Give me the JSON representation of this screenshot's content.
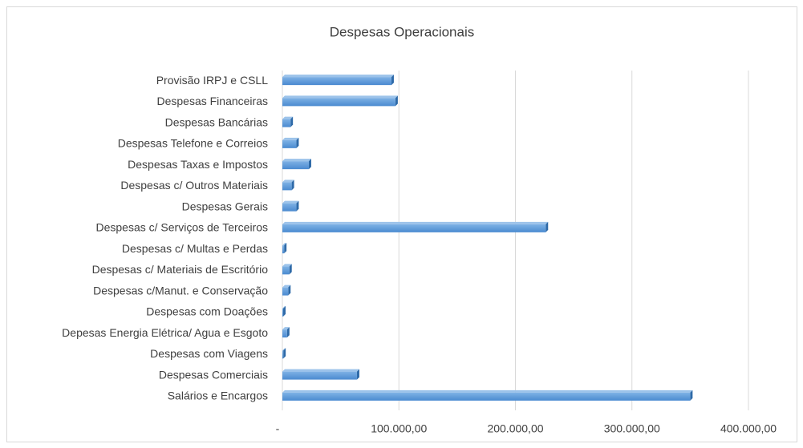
{
  "chart_data": {
    "type": "bar",
    "orientation": "horizontal",
    "title": "Despesas Operacionais",
    "categories": [
      "Provisão IRPJ e CSLL",
      "Despesas Financeiras",
      "Despesas Bancárias",
      "Despesas Telefone e Correios",
      "Despesas Taxas e Impostos",
      "Despesas c/ Outros Materiais",
      "Despesas Gerais",
      "Despesas c/ Serviços de Terceiros",
      "Despesas c/ Multas e Perdas",
      "Despesas c/ Materiais de Escritório",
      "Despesas c/Manut. e Conservação",
      "Despesas com Doações",
      "Depesas Energia Elétrica/ Agua e Esgoto",
      "Despesas com Viagens",
      "Despesas Comerciais",
      "Salários e Encargos"
    ],
    "values": [
      93600,
      97000,
      7000,
      12000,
      22700,
      8000,
      12000,
      226000,
      1500,
      6000,
      5000,
      700,
      4000,
      800,
      64000,
      350000
    ],
    "color": "#5b9bd5",
    "xlim": [
      0,
      400000
    ],
    "xticks": [
      {
        "value": 0,
        "label": "-"
      },
      {
        "value": 100000,
        "label": "100.000,00"
      },
      {
        "value": 200000,
        "label": "200.000,00"
      },
      {
        "value": 300000,
        "label": "300.000,00"
      },
      {
        "value": 400000,
        "label": "400.000,00"
      }
    ],
    "grid": true
  }
}
